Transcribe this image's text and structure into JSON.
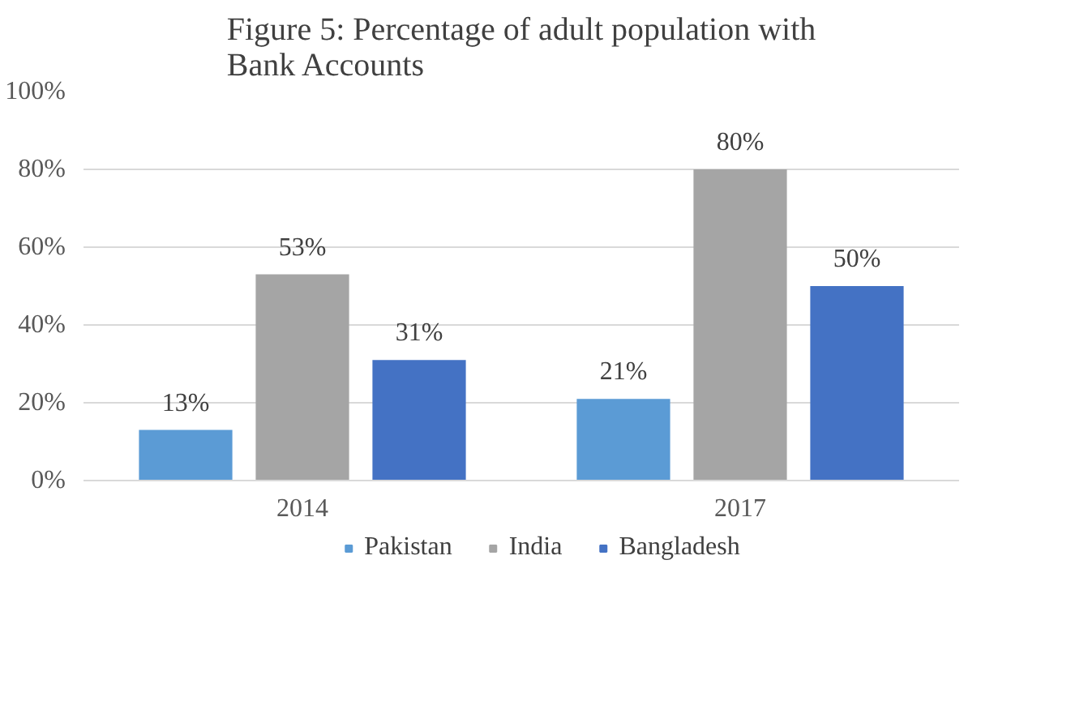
{
  "chart_data": {
    "type": "bar",
    "title": "Figure 5: Percentage of adult population with Bank Accounts",
    "categories": [
      "2014",
      "2017"
    ],
    "series": [
      {
        "name": "Pakistan",
        "color": "#5b9bd5",
        "values": [
          13,
          21
        ],
        "value_labels": [
          "13%",
          "21%"
        ]
      },
      {
        "name": "India",
        "color": "#a5a5a5",
        "values": [
          53,
          80
        ],
        "value_labels": [
          "53%",
          "80%"
        ]
      },
      {
        "name": "Bangladesh",
        "color": "#4472c4",
        "values": [
          31,
          50
        ],
        "value_labels": [
          "31%",
          "50%"
        ]
      }
    ],
    "ylim": [
      0,
      100
    ],
    "yticks": [
      {
        "value": 0,
        "label": "0%"
      },
      {
        "value": 20,
        "label": "20%"
      },
      {
        "value": 40,
        "label": "40%"
      },
      {
        "value": 60,
        "label": "60%"
      },
      {
        "value": 80,
        "label": "80%"
      },
      {
        "value": 100,
        "label": "100%"
      }
    ],
    "grid": "y",
    "legend": "bottom"
  }
}
